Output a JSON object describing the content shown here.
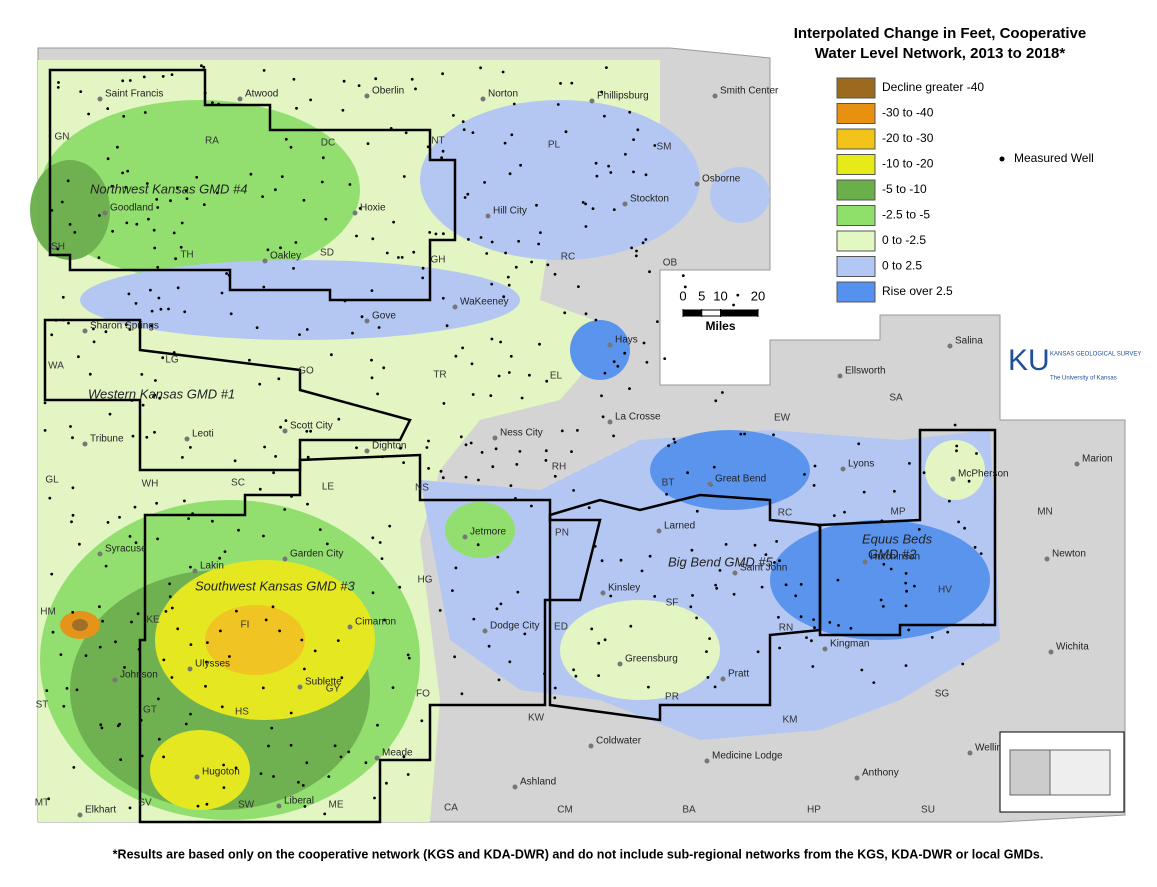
{
  "title": [
    "Interpolated Change in Feet, Cooperative",
    "Water Level Network, 2013 to 2018*"
  ],
  "legend": {
    "items": [
      {
        "label": "Decline greater -40",
        "color": "#9b6a1f"
      },
      {
        "label": "-30 to -40",
        "color": "#e8900f"
      },
      {
        "label": "-20 to -30",
        "color": "#f2c41a"
      },
      {
        "label": "-10 to -20",
        "color": "#e6ea18"
      },
      {
        "label": "-5 to -10",
        "color": "#6aaf4a"
      },
      {
        "label": "-2.5 to -5",
        "color": "#8fe06a"
      },
      {
        "label": "0 to -2.5",
        "color": "#e3f7c3"
      },
      {
        "label": "0 to 2.5",
        "color": "#b3c7f4"
      },
      {
        "label": "Rise over 2.5",
        "color": "#5591ef"
      }
    ],
    "well_label": "Measured Well"
  },
  "scale": {
    "ticks": [
      0,
      5,
      10,
      20
    ],
    "unit": "Miles"
  },
  "logo": {
    "mark": "KU",
    "name": "KANSAS GEOLOGICAL SURVEY",
    "sub": "The University of Kansas"
  },
  "districts": [
    "Northwest Kansas GMD #4",
    "Western Kansas GMD #1",
    "Southwest Kansas GMD #3",
    "Big Bend GMD #5",
    "Equus Beds",
    "GMD #2"
  ],
  "cities": [
    "Saint Francis",
    "Atwood",
    "Oberlin",
    "Norton",
    "Phillipsburg",
    "Smith Center",
    "Goodland",
    "Hoxie",
    "Hill City",
    "Stockton",
    "Osborne",
    "Oakley",
    "WaKeeney",
    "Gove",
    "Hays",
    "Sharon Springs",
    "Leoti",
    "Scott City",
    "Tribune",
    "Dighton",
    "Ness City",
    "La Crosse",
    "Great Bend",
    "Lyons",
    "McPherson",
    "Marion",
    "Ellsworth",
    "Salina",
    "Syracuse",
    "Lakin",
    "Garden City",
    "Jetmore",
    "Larned",
    "Hutchinson",
    "Newton",
    "Saint John",
    "Kinsley",
    "Cimarron",
    "Dodge City",
    "Johnson",
    "Ulysses",
    "Sublette",
    "Greensburg",
    "Pratt",
    "Kingman",
    "Wichita",
    "Meade",
    "Hugoton",
    "Liberal",
    "Elkhart",
    "Ashland",
    "Coldwater",
    "Medicine Lodge",
    "Anthony",
    "Wellington"
  ],
  "counties": [
    "GN",
    "RA",
    "DC",
    "NT",
    "PL",
    "SM",
    "SH",
    "TH",
    "SD",
    "GH",
    "RC",
    "OB",
    "WA",
    "LG",
    "GO",
    "TR",
    "EL",
    "EW",
    "SA",
    "GL",
    "WH",
    "SC",
    "LE",
    "NS",
    "RH",
    "BT",
    "RC",
    "MP",
    "MN",
    "HM",
    "KE",
    "FI",
    "HG",
    "PN",
    "ED",
    "SF",
    "RN",
    "HV",
    "GT",
    "HS",
    "GY",
    "FO",
    "KW",
    "PR",
    "KM",
    "SG",
    "ST",
    "MT",
    "SV",
    "SW",
    "ME",
    "CA",
    "CM",
    "BA",
    "HP",
    "SU"
  ],
  "footnote": "*Results are based only on the cooperative network (KGS and KDA-DWR) and do not include sub-regional networks from the KGS, KDA-DWR or local GMDs."
}
